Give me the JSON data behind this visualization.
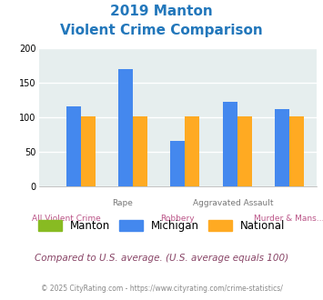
{
  "title_line1": "2019 Manton",
  "title_line2": "Violent Crime Comparison",
  "cat_labels_top": [
    "",
    "Rape",
    "",
    "Aggravated Assault",
    ""
  ],
  "cat_labels_bot": [
    "All Violent Crime",
    "",
    "Robbery",
    "",
    "Murder & Mans..."
  ],
  "manton": [
    0,
    0,
    0,
    0,
    0
  ],
  "michigan": [
    115,
    170,
    66,
    122,
    112
  ],
  "national": [
    101,
    101,
    101,
    101,
    101
  ],
  "manton_color": "#88bb22",
  "michigan_color": "#4488ee",
  "national_color": "#ffaa22",
  "bg_color": "#e6eeee",
  "title_color": "#2277bb",
  "ylim": [
    0,
    200
  ],
  "yticks": [
    0,
    50,
    100,
    150,
    200
  ],
  "subtitle_text": "Compared to U.S. average. (U.S. average equals 100)",
  "footer_text": "© 2025 CityRating.com - https://www.cityrating.com/crime-statistics/",
  "legend_labels": [
    "Manton",
    "Michigan",
    "National"
  ],
  "bar_width": 0.28,
  "top_label_color": "#777777",
  "bot_label_color": "#bb5588"
}
